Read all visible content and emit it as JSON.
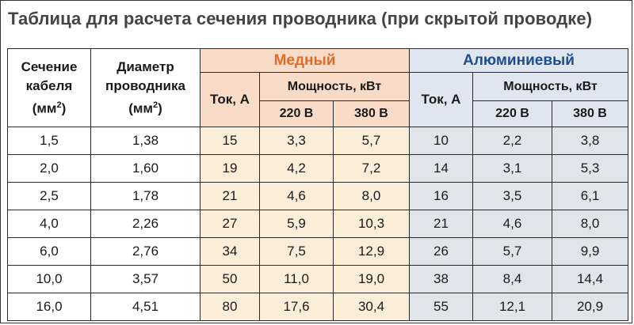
{
  "title": "Таблица для расчета сечения проводника (при скрытой проводке)",
  "headers": {
    "section_line1": "Сечение",
    "section_line2": "кабеля",
    "section_unit_open": "(мм",
    "section_unit_sup": "2",
    "section_unit_close": ")",
    "diameter_line1": "Диаметр",
    "diameter_line2": "проводника",
    "diameter_unit_open": "(мм",
    "diameter_unit_sup": "2",
    "diameter_unit_close": ")",
    "copper": "Медный",
    "aluminum": "Алюминиевый",
    "current": "Ток, А",
    "power": "Мощность, кВт",
    "v220": "220 В",
    "v380": "380 В"
  },
  "colors": {
    "copper_accent": "#e06c2c",
    "aluminum_accent": "#1f4e8c",
    "copper_bg": "#fbeed9",
    "aluminum_bg": "#e0e5ec"
  },
  "rows": [
    {
      "section": "1,5",
      "diameter": "1,38",
      "cu_current": "15",
      "cu_220": "3,3",
      "cu_380": "5,7",
      "al_current": "10",
      "al_220": "2,2",
      "al_380": "3,8"
    },
    {
      "section": "2,0",
      "diameter": "1,60",
      "cu_current": "19",
      "cu_220": "4,2",
      "cu_380": "7,2",
      "al_current": "14",
      "al_220": "3,1",
      "al_380": "5,3"
    },
    {
      "section": "2,5",
      "diameter": "1,78",
      "cu_current": "21",
      "cu_220": "4,6",
      "cu_380": "8,0",
      "al_current": "16",
      "al_220": "3,5",
      "al_380": "6,1"
    },
    {
      "section": "4,0",
      "diameter": "2,26",
      "cu_current": "27",
      "cu_220": "5,9",
      "cu_380": "10,3",
      "al_current": "21",
      "al_220": "4,6",
      "al_380": "8,0"
    },
    {
      "section": "6,0",
      "diameter": "2,76",
      "cu_current": "34",
      "cu_220": "7,5",
      "cu_380": "12,9",
      "al_current": "26",
      "al_220": "5,7",
      "al_380": "9,9"
    },
    {
      "section": "10,0",
      "diameter": "3,57",
      "cu_current": "50",
      "cu_220": "11,0",
      "cu_380": "19,0",
      "al_current": "38",
      "al_220": "8,4",
      "al_380": "14,4"
    },
    {
      "section": "16,0",
      "diameter": "4,51",
      "cu_current": "80",
      "cu_220": "17,6",
      "cu_380": "30,4",
      "al_current": "55",
      "al_220": "12,1",
      "al_380": "20,9"
    }
  ]
}
